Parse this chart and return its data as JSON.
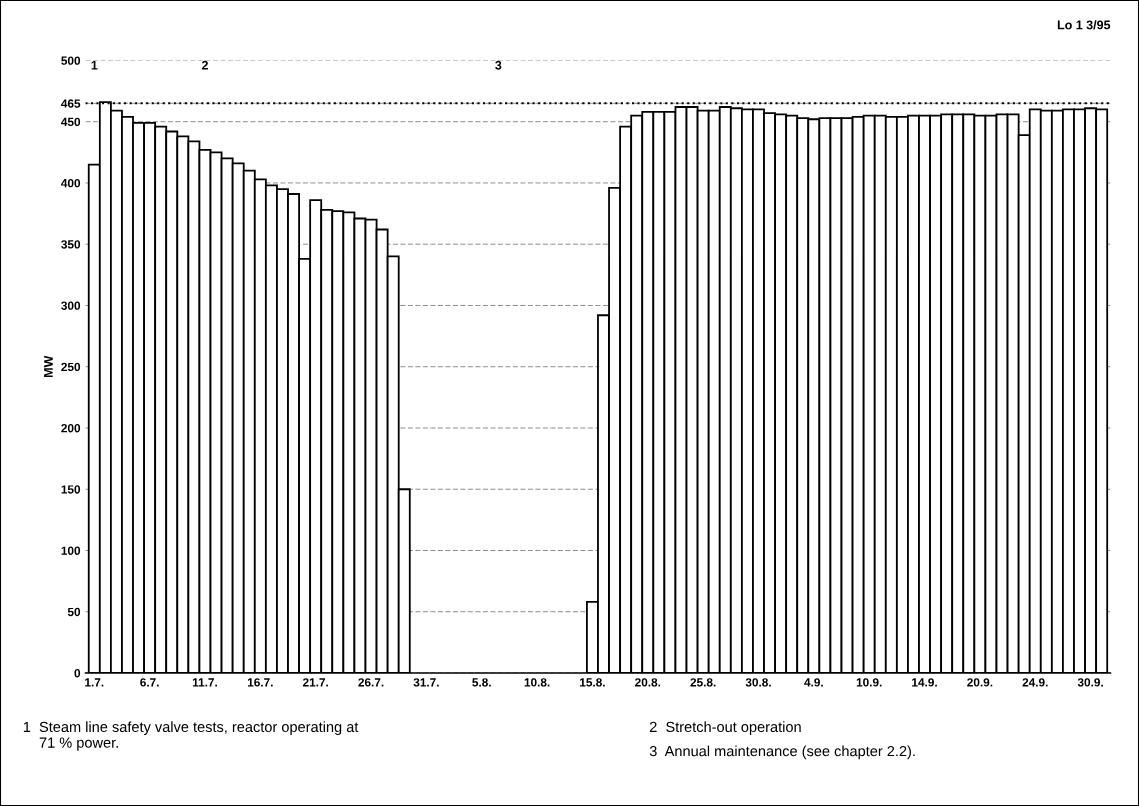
{
  "chart_data": {
    "type": "bar",
    "ylabel": "MW",
    "categories": [
      "1.7.",
      null,
      null,
      null,
      null,
      "6.7.",
      null,
      null,
      null,
      null,
      "11.7.",
      null,
      null,
      null,
      null,
      "16.7.",
      null,
      null,
      null,
      null,
      "21.7.",
      null,
      null,
      null,
      null,
      "26.7.",
      null,
      null,
      null,
      null,
      "31.7.",
      null,
      null,
      null,
      null,
      "5.8.",
      null,
      null,
      null,
      null,
      "10.8.",
      null,
      null,
      null,
      null,
      "15.8.",
      null,
      null,
      null,
      null,
      "20.8.",
      null,
      null,
      null,
      null,
      "25.8.",
      null,
      null,
      null,
      null,
      "30.8.",
      null,
      null,
      null,
      null,
      "4.9.",
      null,
      null,
      null,
      null,
      "10.9.",
      null,
      null,
      null,
      null,
      "14.9.",
      null,
      null,
      null,
      null,
      "20.9.",
      null,
      null,
      null,
      null,
      "24.9.",
      null,
      null,
      null,
      null,
      "30.9.",
      null
    ],
    "values": [
      415,
      466,
      459,
      454,
      449,
      449,
      446,
      442,
      438,
      434,
      427,
      425,
      420,
      416,
      410,
      403,
      398,
      395,
      391,
      338,
      386,
      378,
      377,
      376,
      371,
      370,
      362,
      340,
      150,
      null,
      null,
      null,
      null,
      null,
      null,
      null,
      null,
      null,
      null,
      null,
      null,
      null,
      null,
      null,
      null,
      58,
      292,
      396,
      446,
      455,
      458,
      458,
      458,
      462,
      462,
      459,
      459,
      462,
      461,
      460,
      460,
      457,
      456,
      455,
      453,
      452,
      453,
      453,
      453,
      454,
      455,
      455,
      454,
      454,
      455,
      455,
      455,
      456,
      456,
      456,
      455,
      455,
      456,
      456,
      439,
      460,
      459,
      459,
      460,
      460,
      461,
      460
    ],
    "color": "#ffffff",
    "ylim": [
      0,
      500
    ],
    "yticks": [
      0,
      50,
      100,
      150,
      200,
      250,
      300,
      350,
      400,
      450,
      465,
      500
    ],
    "grid": "y",
    "ref_lines": [
      {
        "axis": "y",
        "value": 465,
        "line_style": "dotted",
        "color": "#000000"
      }
    ],
    "annotations": [
      "1",
      "2",
      "3",
      "Lo 1 3/95",
      "1  Steam line safety valve tests, reactor operating at\n    71 % power.",
      "2  Stretch-out operation",
      "3  Annual maintenance (see chapter 2.2)."
    ]
  }
}
